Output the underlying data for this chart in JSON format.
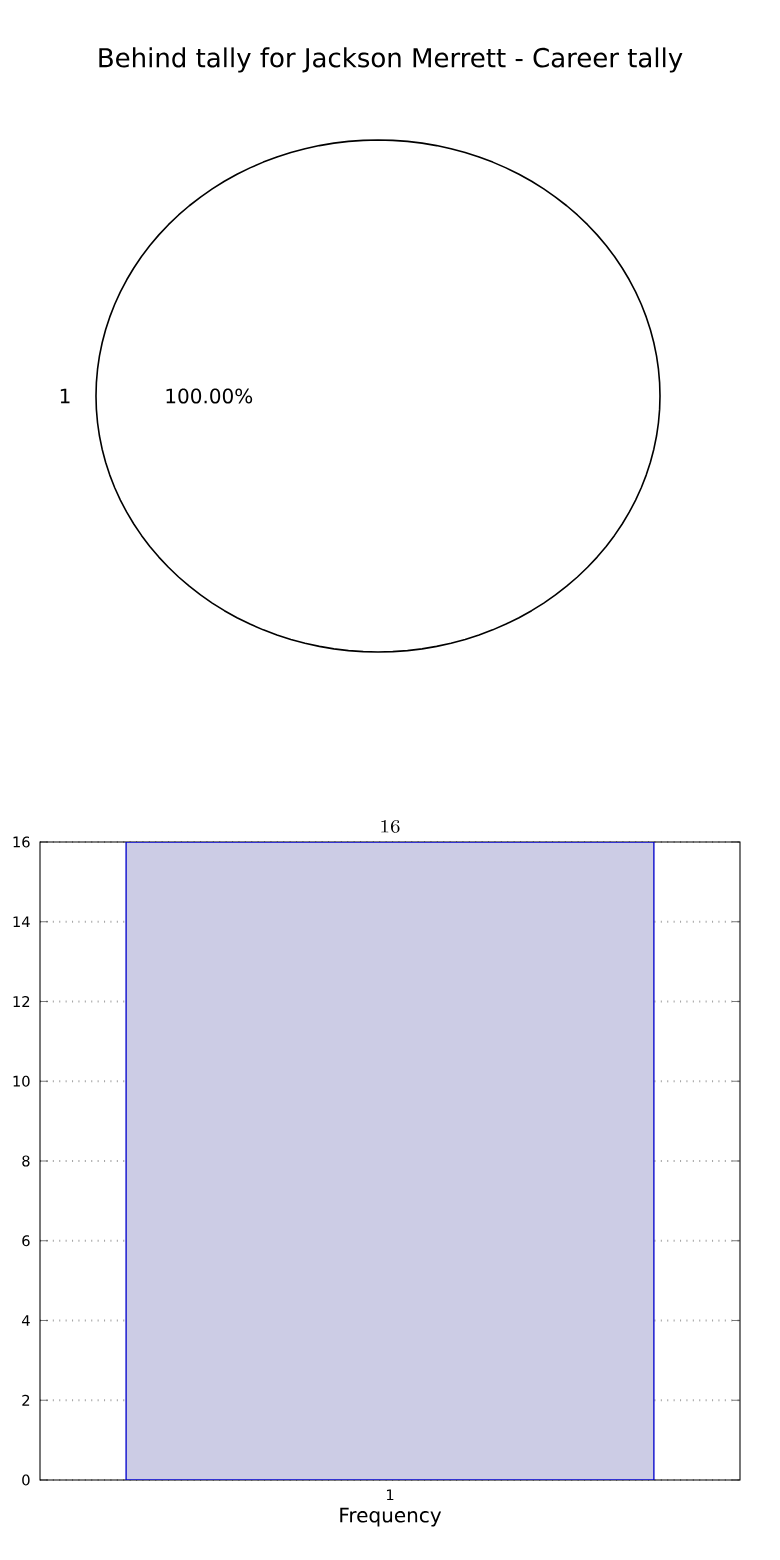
{
  "chart_data": [
    {
      "type": "pie",
      "title": "Behind tally for Jackson Merrett - Career tally",
      "categories": [
        "1"
      ],
      "values": [
        100
      ],
      "colors": [
        "#ffffff"
      ],
      "value_labels": [
        "100.00%"
      ]
    },
    {
      "type": "bar",
      "categories": [
        "1"
      ],
      "values": [
        16
      ],
      "color": "#ccccE5",
      "ylim": [
        0,
        16
      ],
      "yticks": [
        0,
        2,
        4,
        6,
        8,
        10,
        12,
        14,
        16
      ],
      "grid": true,
      "data_labels": true,
      "xlabel": "Frequency"
    }
  ]
}
